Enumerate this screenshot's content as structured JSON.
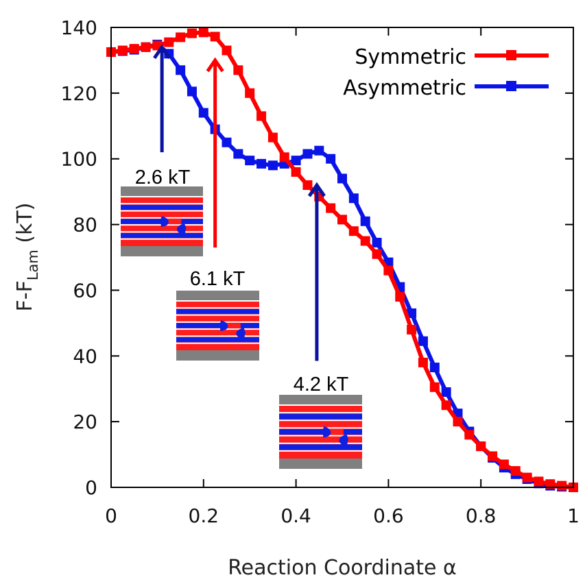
{
  "chart_data": {
    "type": "line",
    "xlabel": "Reaction Coordinate α",
    "ylabel": {
      "main": "F-F",
      "sub": "Lam",
      "unit": " (kT)"
    },
    "xlim": [
      0,
      1
    ],
    "ylim": [
      0,
      140
    ],
    "xticks": [
      0,
      0.2,
      0.4,
      0.6,
      0.8,
      1
    ],
    "xtick_labels": [
      "0",
      "0.2",
      "0.4",
      "0.6",
      "0.8",
      "1"
    ],
    "yticks": [
      0,
      20,
      40,
      60,
      80,
      100,
      120,
      140
    ],
    "ytick_labels": [
      "0",
      "20",
      "40",
      "60",
      "80",
      "100",
      "120",
      "140"
    ],
    "grid": false,
    "legend_position": "top-right",
    "series": [
      {
        "name": "Symmetric",
        "color": "#ff0000",
        "x": [
          0,
          0.025,
          0.05,
          0.075,
          0.1,
          0.125,
          0.15,
          0.175,
          0.2,
          0.225,
          0.25,
          0.275,
          0.3,
          0.325,
          0.35,
          0.375,
          0.4,
          0.425,
          0.45,
          0.475,
          0.5,
          0.525,
          0.55,
          0.575,
          0.6,
          0.625,
          0.65,
          0.675,
          0.7,
          0.725,
          0.75,
          0.775,
          0.8,
          0.825,
          0.85,
          0.875,
          0.9,
          0.925,
          0.95,
          0.975,
          1.0
        ],
        "y": [
          132.5,
          133,
          133.5,
          134,
          134.5,
          135.5,
          137,
          138.2,
          138.5,
          137.2,
          133,
          127,
          120,
          113,
          106.5,
          100.5,
          96,
          92,
          88.5,
          85,
          81.5,
          78,
          75,
          71,
          66,
          58,
          48,
          38,
          30.5,
          25,
          20,
          16,
          12.5,
          9.5,
          7,
          5,
          3,
          1.8,
          1,
          0.5,
          0
        ]
      },
      {
        "name": "Asymmetric",
        "color": "#0a14e6",
        "x": [
          0,
          0.025,
          0.05,
          0.075,
          0.1,
          0.125,
          0.15,
          0.175,
          0.2,
          0.225,
          0.25,
          0.275,
          0.3,
          0.325,
          0.35,
          0.375,
          0.4,
          0.425,
          0.45,
          0.475,
          0.5,
          0.525,
          0.55,
          0.575,
          0.6,
          0.625,
          0.65,
          0.675,
          0.7,
          0.725,
          0.75,
          0.775,
          0.8,
          0.825,
          0.85,
          0.875,
          0.9,
          0.925,
          0.95,
          0.975,
          1.0
        ],
        "y": [
          132.5,
          132.8,
          133.2,
          134,
          134.8,
          132,
          127,
          120.5,
          114,
          109,
          105,
          101.5,
          99.5,
          98.5,
          98,
          98.5,
          99.5,
          101.5,
          102.5,
          100,
          94,
          88,
          81,
          74.5,
          68.5,
          61,
          53,
          44.5,
          36.5,
          29,
          22.5,
          17,
          12.5,
          9,
          6,
          4,
          2.5,
          1.2,
          0.5,
          0.2,
          0
        ]
      }
    ],
    "annotations": [
      {
        "label": "2.6 kT",
        "x": 0.11,
        "y_head": 134,
        "y_tail": 102,
        "color": "#0a14a0"
      },
      {
        "label": "6.1 kT",
        "x": 0.225,
        "y_head": 130,
        "y_tail": 73,
        "color": "#ff0000"
      },
      {
        "label": "4.2 kT",
        "x": 0.445,
        "y_head": 92,
        "y_tail": 38.5,
        "color": "#0a14a0"
      }
    ]
  }
}
